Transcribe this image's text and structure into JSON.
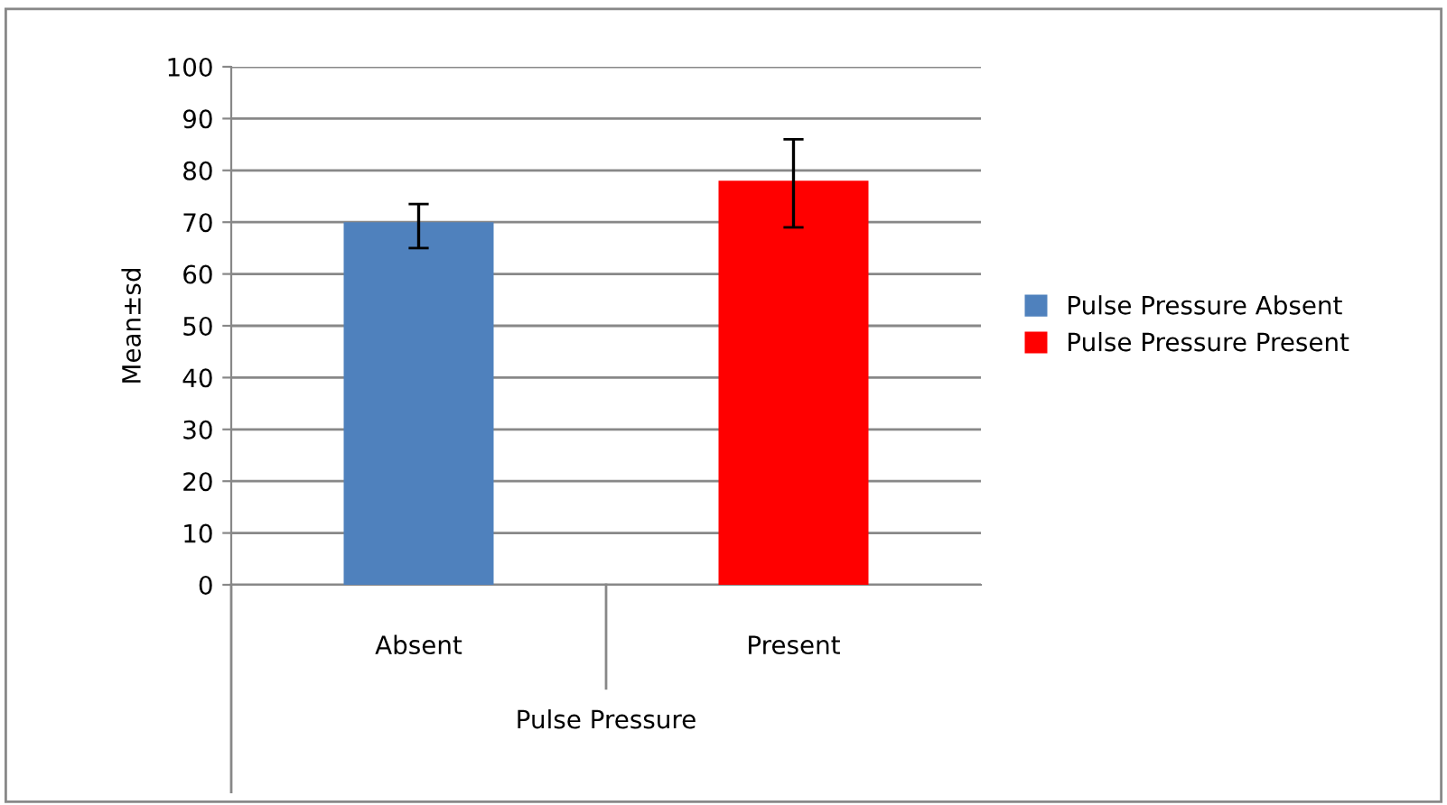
{
  "chart_data": {
    "type": "bar",
    "categories": [
      "Absent",
      "Present"
    ],
    "series": [
      {
        "name": "Pulse Pressure Absent",
        "color": "#4f81bd",
        "values": [
          70,
          null
        ],
        "errors": [
          [
            65,
            73.5
          ],
          null
        ]
      },
      {
        "name": "Pulse Pressure Present",
        "color": "#ff0000",
        "values": [
          null,
          78
        ],
        "errors": [
          null,
          [
            69,
            86
          ]
        ]
      }
    ],
    "xlabel": "Pulse Pressure",
    "ylabel": "Mean±sd",
    "ylim": [
      0,
      100
    ],
    "yticks": [
      0,
      10,
      20,
      30,
      40,
      50,
      60,
      70,
      80,
      90,
      100
    ],
    "grid": "y",
    "legend": "right"
  }
}
